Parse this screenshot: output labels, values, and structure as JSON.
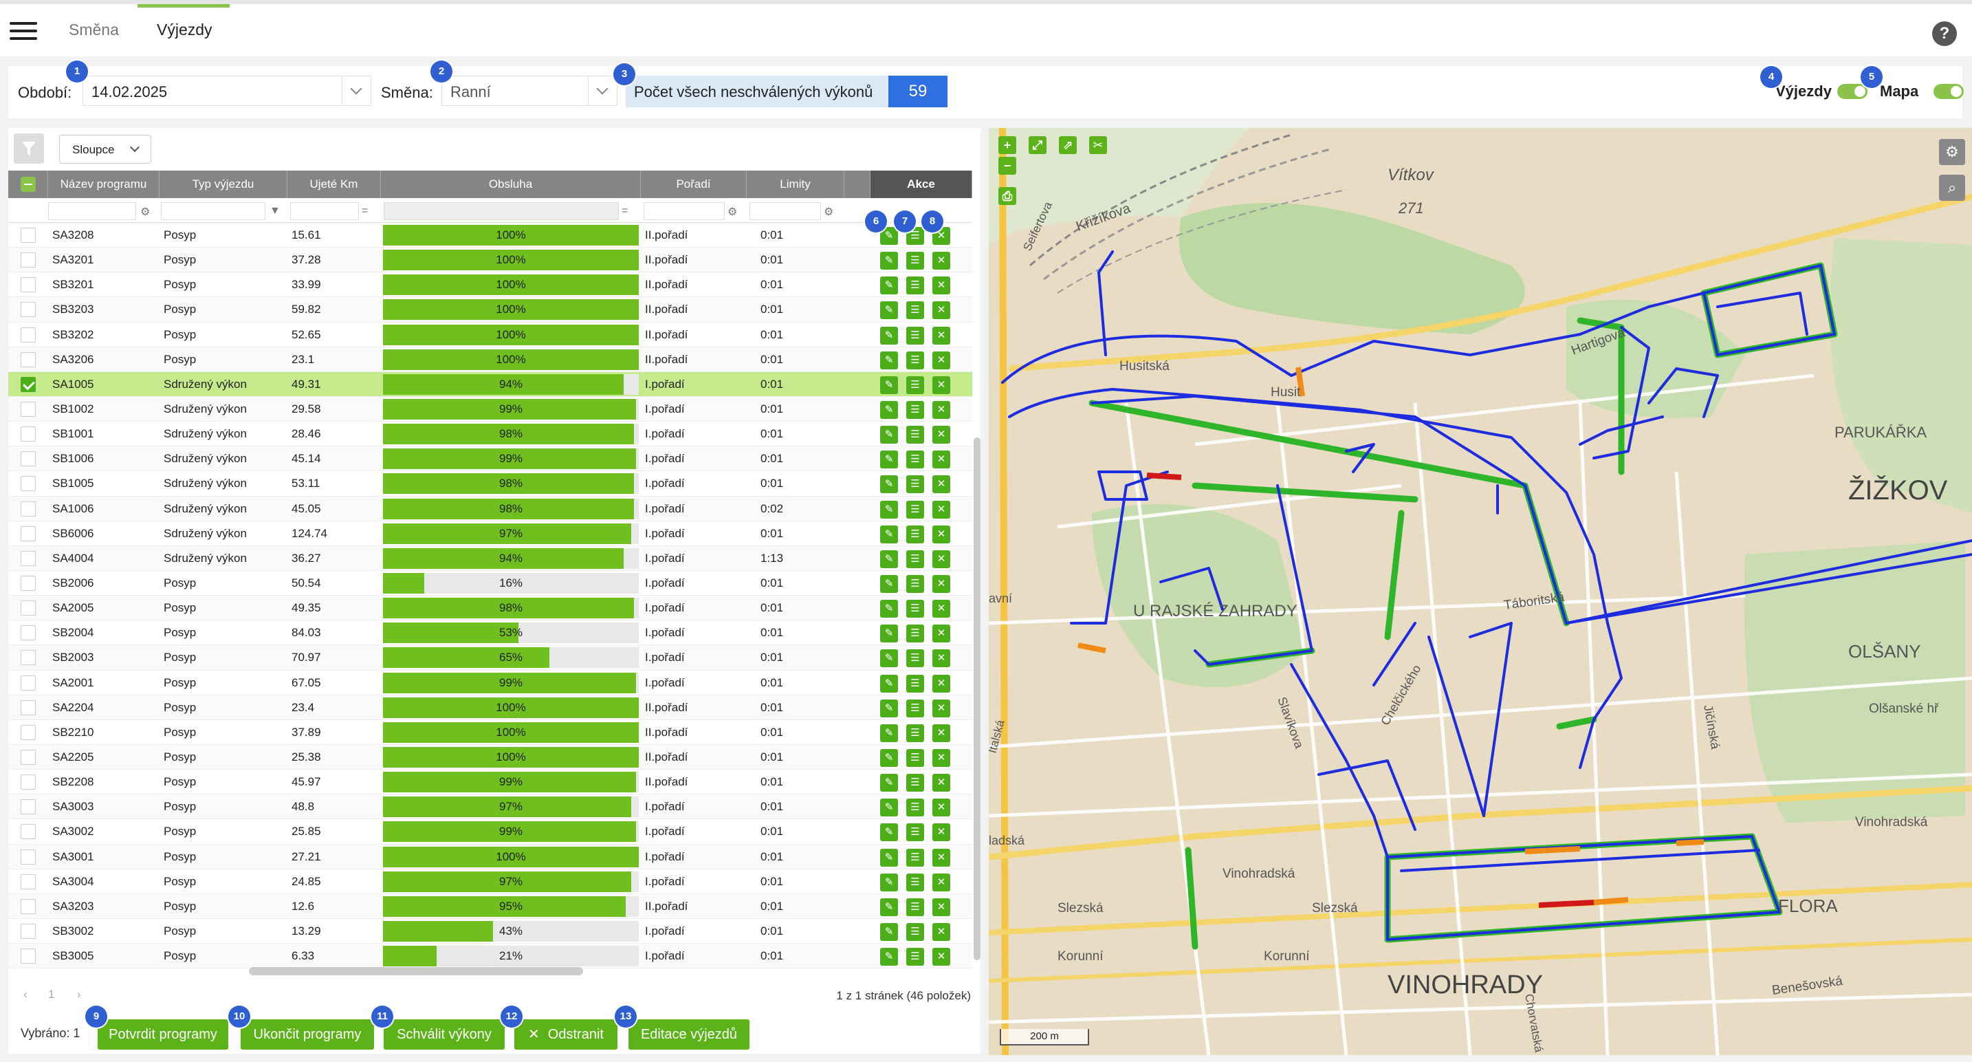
{
  "tabs": {
    "smena": "Směna",
    "vyjezdy": "Výjezdy"
  },
  "help": "?",
  "filters": {
    "obdobi_label": "Období:",
    "obdobi_value": "14.02.2025",
    "smena_label": "Směna:",
    "smena_value": "Ranní",
    "count_label": "Počet všech neschválených výkonů",
    "count_value": "59",
    "toggle_vyjezdy": "Výjezdy",
    "toggle_mapa": "Mapa"
  },
  "toolbar": {
    "columns_label": "Sloupce"
  },
  "table": {
    "headers": [
      "Název programu",
      "Typ výjezdu",
      "Ujeté Km",
      "Obsluha",
      "Pořadí",
      "Limity",
      "Akce"
    ],
    "rows": [
      {
        "name": "SA3208",
        "type": "Posyp",
        "km": "15.61",
        "pct": 100,
        "pct_label": "100%",
        "order": "II.pořadí",
        "limit": "0:01",
        "sel": false
      },
      {
        "name": "SA3201",
        "type": "Posyp",
        "km": "37.28",
        "pct": 100,
        "pct_label": "100%",
        "order": "II.pořadí",
        "limit": "0:01",
        "sel": false
      },
      {
        "name": "SB3201",
        "type": "Posyp",
        "km": "33.99",
        "pct": 100,
        "pct_label": "100%",
        "order": "II.pořadí",
        "limit": "0:01",
        "sel": false
      },
      {
        "name": "SB3203",
        "type": "Posyp",
        "km": "59.82",
        "pct": 100,
        "pct_label": "100%",
        "order": "II.pořadí",
        "limit": "0:01",
        "sel": false
      },
      {
        "name": "SB3202",
        "type": "Posyp",
        "km": "52.65",
        "pct": 100,
        "pct_label": "100%",
        "order": "II.pořadí",
        "limit": "0:01",
        "sel": false
      },
      {
        "name": "SA3206",
        "type": "Posyp",
        "km": "23.1",
        "pct": 100,
        "pct_label": "100%",
        "order": "II.pořadí",
        "limit": "0:01",
        "sel": false
      },
      {
        "name": "SA1005",
        "type": "Sdružený výkon",
        "km": "49.31",
        "pct": 94,
        "pct_label": "94%",
        "order": "I.pořadí",
        "limit": "0:01",
        "sel": true
      },
      {
        "name": "SB1002",
        "type": "Sdružený výkon",
        "km": "29.58",
        "pct": 99,
        "pct_label": "99%",
        "order": "I.pořadí",
        "limit": "0:01",
        "sel": false
      },
      {
        "name": "SB1001",
        "type": "Sdružený výkon",
        "km": "28.46",
        "pct": 98,
        "pct_label": "98%",
        "order": "I.pořadí",
        "limit": "0:01",
        "sel": false
      },
      {
        "name": "SB1006",
        "type": "Sdružený výkon",
        "km": "45.14",
        "pct": 99,
        "pct_label": "99%",
        "order": "I.pořadí",
        "limit": "0:01",
        "sel": false
      },
      {
        "name": "SB1005",
        "type": "Sdružený výkon",
        "km": "53.11",
        "pct": 98,
        "pct_label": "98%",
        "order": "I.pořadí",
        "limit": "0:01",
        "sel": false
      },
      {
        "name": "SA1006",
        "type": "Sdružený výkon",
        "km": "45.05",
        "pct": 98,
        "pct_label": "98%",
        "order": "I.pořadí",
        "limit": "0:02",
        "sel": false
      },
      {
        "name": "SB6006",
        "type": "Sdružený výkon",
        "km": "124.74",
        "pct": 97,
        "pct_label": "97%",
        "order": "I.pořadí",
        "limit": "0:01",
        "sel": false
      },
      {
        "name": "SA4004",
        "type": "Sdružený výkon",
        "km": "36.27",
        "pct": 94,
        "pct_label": "94%",
        "order": "I.pořadí",
        "limit": "1:13",
        "sel": false
      },
      {
        "name": "SB2006",
        "type": "Posyp",
        "km": "50.54",
        "pct": 16,
        "pct_label": "16%",
        "order": "I.pořadí",
        "limit": "0:01",
        "sel": false
      },
      {
        "name": "SA2005",
        "type": "Posyp",
        "km": "49.35",
        "pct": 98,
        "pct_label": "98%",
        "order": "I.pořadí",
        "limit": "0:01",
        "sel": false
      },
      {
        "name": "SB2004",
        "type": "Posyp",
        "km": "84.03",
        "pct": 53,
        "pct_label": "53%",
        "order": "I.pořadí",
        "limit": "0:01",
        "sel": false
      },
      {
        "name": "SB2003",
        "type": "Posyp",
        "km": "70.97",
        "pct": 65,
        "pct_label": "65%",
        "order": "I.pořadí",
        "limit": "0:01",
        "sel": false
      },
      {
        "name": "SA2001",
        "type": "Posyp",
        "km": "67.05",
        "pct": 99,
        "pct_label": "99%",
        "order": "I.pořadí",
        "limit": "0:01",
        "sel": false
      },
      {
        "name": "SA2204",
        "type": "Posyp",
        "km": "23.4",
        "pct": 100,
        "pct_label": "100%",
        "order": "II.pořadí",
        "limit": "0:01",
        "sel": false
      },
      {
        "name": "SB2210",
        "type": "Posyp",
        "km": "37.89",
        "pct": 100,
        "pct_label": "100%",
        "order": "II.pořadí",
        "limit": "0:01",
        "sel": false
      },
      {
        "name": "SA2205",
        "type": "Posyp",
        "km": "25.38",
        "pct": 100,
        "pct_label": "100%",
        "order": "II.pořadí",
        "limit": "0:01",
        "sel": false
      },
      {
        "name": "SB2208",
        "type": "Posyp",
        "km": "45.97",
        "pct": 99,
        "pct_label": "99%",
        "order": "II.pořadí",
        "limit": "0:01",
        "sel": false
      },
      {
        "name": "SA3003",
        "type": "Posyp",
        "km": "48.8",
        "pct": 97,
        "pct_label": "97%",
        "order": "I.pořadí",
        "limit": "0:01",
        "sel": false
      },
      {
        "name": "SA3002",
        "type": "Posyp",
        "km": "25.85",
        "pct": 99,
        "pct_label": "99%",
        "order": "I.pořadí",
        "limit": "0:01",
        "sel": false
      },
      {
        "name": "SA3001",
        "type": "Posyp",
        "km": "27.21",
        "pct": 100,
        "pct_label": "100%",
        "order": "I.pořadí",
        "limit": "0:01",
        "sel": false
      },
      {
        "name": "SA3004",
        "type": "Posyp",
        "km": "24.85",
        "pct": 97,
        "pct_label": "97%",
        "order": "I.pořadí",
        "limit": "0:01",
        "sel": false
      },
      {
        "name": "SA3203",
        "type": "Posyp",
        "km": "12.6",
        "pct": 95,
        "pct_label": "95%",
        "order": "II.pořadí",
        "limit": "0:01",
        "sel": false
      },
      {
        "name": "SB3002",
        "type": "Posyp",
        "km": "13.29",
        "pct": 43,
        "pct_label": "43%",
        "order": "I.pořadí",
        "limit": "0:01",
        "sel": false
      },
      {
        "name": "SB3005",
        "type": "Posyp",
        "km": "6.33",
        "pct": 21,
        "pct_label": "21%",
        "order": "I.pořadí",
        "limit": "0:01",
        "sel": false
      }
    ]
  },
  "pager": {
    "prev": "‹",
    "page": "1",
    "next": "›",
    "info": "1 z 1 stránek (46 položek)"
  },
  "footer": {
    "selected": "Vybráno: 1",
    "buttons": [
      "Potvrdit programy",
      "Ukončit programy",
      "Schválit výkony",
      "Odstranit",
      "Editace výjezdů"
    ]
  },
  "badges": [
    "1",
    "2",
    "3",
    "4",
    "5",
    "6",
    "7",
    "8",
    "9",
    "10",
    "11",
    "12",
    "13"
  ],
  "map": {
    "labels": [
      "Vítkov",
      "271",
      "Křižíkova",
      "Husitská",
      "Husit",
      "Hartigova",
      "PARUKÁŘKA",
      "ŽIŽKOV",
      "U RAJSKÉ ZAHRADY",
      "OLŠANY",
      "Olšanské hř",
      "Táboritská",
      "Slavíkova",
      "Chelčického",
      "Jičínská",
      "Vinohradská",
      "Vinohradská",
      "Slezská",
      "Slezská",
      "FLORA",
      "Korunní",
      "Korunní",
      "VINOHRADY",
      "Benešovská",
      "Chorvatská",
      "Seifertova",
      "ladská",
      "Italská",
      "avní"
    ],
    "scale": "200 m"
  },
  "colors": {
    "accent": "#5cb319",
    "track": "#1e2ce0",
    "progress": "#6fbf1f",
    "header": "#858585"
  }
}
